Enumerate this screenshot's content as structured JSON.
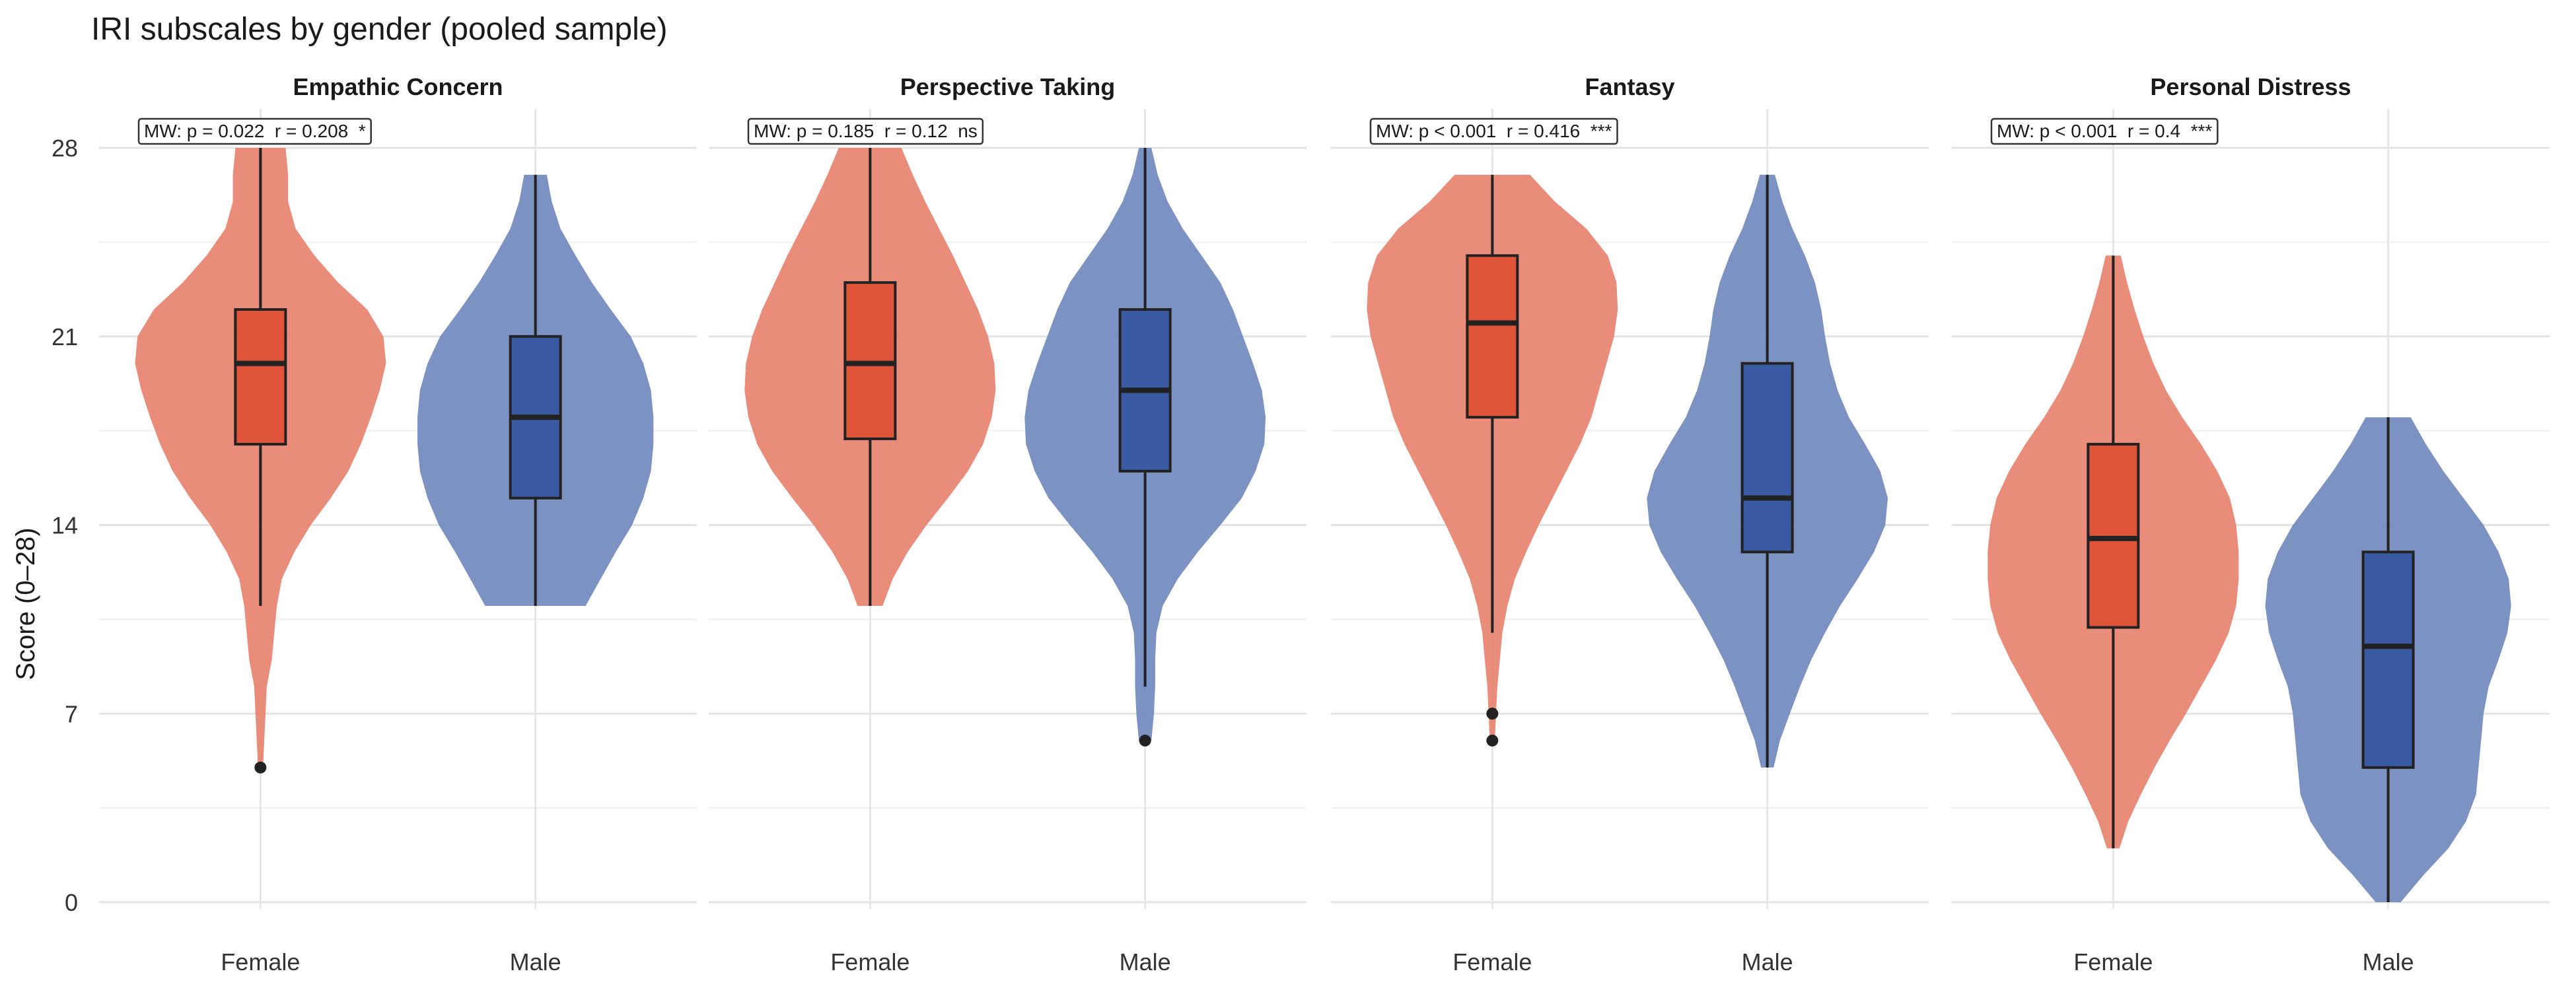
{
  "chart_data": {
    "type": "violin",
    "title": "IRI subscales by gender (pooled sample)",
    "ylabel": "Score (0–28)",
    "xlabel": "",
    "ylim": [
      0,
      28
    ],
    "yticks": [
      0,
      7,
      14,
      21,
      28
    ],
    "categories": [
      "Female",
      "Male"
    ],
    "colors": {
      "Female_violin": "#e8806c",
      "Female_box": "#e0553a",
      "Male_violin": "#6d86bd",
      "Male_box": "#3a5ba3",
      "line": "#222222",
      "grid": "#e6e6e6",
      "annot_border": "#333333"
    },
    "panels": [
      {
        "name": "Empathic Concern",
        "annotation": "MW: p = 0.022  r = 0.208  *",
        "groups": [
          {
            "label": "Female",
            "density": [
              [
                5,
                0.02
              ],
              [
                6,
                0.03
              ],
              [
                8,
                0.05
              ],
              [
                9,
                0.09
              ],
              [
                11,
                0.13
              ],
              [
                12,
                0.17
              ],
              [
                13,
                0.27
              ],
              [
                14,
                0.4
              ],
              [
                15,
                0.56
              ],
              [
                16,
                0.7
              ],
              [
                17,
                0.8
              ],
              [
                18,
                0.88
              ],
              [
                19,
                0.95
              ],
              [
                20,
                1.0
              ],
              [
                21,
                0.98
              ],
              [
                22,
                0.85
              ],
              [
                23,
                0.62
              ],
              [
                24,
                0.43
              ],
              [
                25,
                0.28
              ],
              [
                26,
                0.22
              ],
              [
                27,
                0.22
              ],
              [
                28,
                0.2
              ]
            ],
            "box": {
              "min": 11,
              "q1": 17,
              "median": 20,
              "q3": 22,
              "max": 28
            },
            "outliers": [
              5
            ]
          },
          {
            "label": "Male",
            "density": [
              [
                11,
                0.4
              ],
              [
                12,
                0.52
              ],
              [
                13,
                0.64
              ],
              [
                14,
                0.77
              ],
              [
                15,
                0.86
              ],
              [
                16,
                0.92
              ],
              [
                17,
                0.94
              ],
              [
                18,
                0.94
              ],
              [
                19,
                0.92
              ],
              [
                20,
                0.86
              ],
              [
                21,
                0.76
              ],
              [
                22,
                0.6
              ],
              [
                23,
                0.45
              ],
              [
                24,
                0.32
              ],
              [
                25,
                0.2
              ],
              [
                26,
                0.13
              ],
              [
                27,
                0.09
              ]
            ],
            "box": {
              "min": 11,
              "q1": 15,
              "median": 18,
              "q3": 21,
              "max": 27
            },
            "outliers": []
          }
        ]
      },
      {
        "name": "Perspective Taking",
        "annotation": "MW: p = 0.185  r = 0.12  ns",
        "groups": [
          {
            "label": "Female",
            "density": [
              [
                11,
                0.1
              ],
              [
                12,
                0.18
              ],
              [
                13,
                0.3
              ],
              [
                14,
                0.45
              ],
              [
                15,
                0.62
              ],
              [
                16,
                0.78
              ],
              [
                17,
                0.9
              ],
              [
                18,
                0.97
              ],
              [
                19,
                1.0
              ],
              [
                20,
                0.99
              ],
              [
                21,
                0.94
              ],
              [
                22,
                0.86
              ],
              [
                23,
                0.76
              ],
              [
                24,
                0.66
              ],
              [
                25,
                0.55
              ],
              [
                26,
                0.44
              ],
              [
                27,
                0.34
              ],
              [
                28,
                0.25
              ]
            ],
            "box": {
              "min": 11,
              "q1": 17.2,
              "median": 20,
              "q3": 23,
              "max": 28
            },
            "outliers": []
          },
          {
            "label": "Male",
            "density": [
              [
                6,
                0.05
              ],
              [
                7,
                0.07
              ],
              [
                8,
                0.08
              ],
              [
                9,
                0.08
              ],
              [
                10,
                0.09
              ],
              [
                11,
                0.14
              ],
              [
                12,
                0.26
              ],
              [
                13,
                0.42
              ],
              [
                14,
                0.6
              ],
              [
                15,
                0.77
              ],
              [
                16,
                0.88
              ],
              [
                17,
                0.95
              ],
              [
                18,
                0.96
              ],
              [
                19,
                0.93
              ],
              [
                20,
                0.86
              ],
              [
                21,
                0.78
              ],
              [
                22,
                0.7
              ],
              [
                23,
                0.6
              ],
              [
                24,
                0.45
              ],
              [
                25,
                0.3
              ],
              [
                26,
                0.18
              ],
              [
                27,
                0.1
              ],
              [
                28,
                0.05
              ]
            ],
            "box": {
              "min": 8,
              "q1": 16,
              "median": 19,
              "q3": 22,
              "max": 28
            },
            "outliers": [
              6
            ]
          }
        ]
      },
      {
        "name": "Fantasy",
        "annotation": "MW: p < 0.001  r = 0.416  ***",
        "groups": [
          {
            "label": "Female",
            "density": [
              [
                6,
                0.02
              ],
              [
                7,
                0.03
              ],
              [
                8,
                0.04
              ],
              [
                9,
                0.06
              ],
              [
                10,
                0.08
              ],
              [
                11,
                0.12
              ],
              [
                12,
                0.18
              ],
              [
                13,
                0.27
              ],
              [
                14,
                0.37
              ],
              [
                15,
                0.48
              ],
              [
                16,
                0.59
              ],
              [
                17,
                0.7
              ],
              [
                18,
                0.79
              ],
              [
                19,
                0.85
              ],
              [
                20,
                0.91
              ],
              [
                21,
                0.97
              ],
              [
                22,
                1.0
              ],
              [
                23,
                0.99
              ],
              [
                24,
                0.92
              ],
              [
                25,
                0.75
              ],
              [
                26,
                0.5
              ],
              [
                27,
                0.3
              ]
            ],
            "box": {
              "min": 10,
              "q1": 18,
              "median": 21.5,
              "q3": 24,
              "max": 27
            },
            "outliers": [
              6,
              7
            ]
          },
          {
            "label": "Male",
            "density": [
              [
                5,
                0.05
              ],
              [
                6,
                0.1
              ],
              [
                7,
                0.18
              ],
              [
                8,
                0.26
              ],
              [
                9,
                0.35
              ],
              [
                10,
                0.46
              ],
              [
                11,
                0.58
              ],
              [
                12,
                0.72
              ],
              [
                13,
                0.85
              ],
              [
                14,
                0.94
              ],
              [
                15,
                0.96
              ],
              [
                16,
                0.9
              ],
              [
                17,
                0.78
              ],
              [
                18,
                0.65
              ],
              [
                19,
                0.56
              ],
              [
                20,
                0.5
              ],
              [
                21,
                0.46
              ],
              [
                22,
                0.43
              ],
              [
                23,
                0.38
              ],
              [
                24,
                0.3
              ],
              [
                25,
                0.2
              ],
              [
                26,
                0.12
              ],
              [
                27,
                0.06
              ]
            ],
            "box": {
              "min": 5,
              "q1": 13,
              "median": 15,
              "q3": 20,
              "max": 27
            },
            "outliers": []
          }
        ]
      },
      {
        "name": "Personal Distress",
        "annotation": "MW: p < 0.001  r = 0.4  ***",
        "groups": [
          {
            "label": "Female",
            "density": [
              [
                2,
                0.05
              ],
              [
                3,
                0.12
              ],
              [
                4,
                0.22
              ],
              [
                5,
                0.33
              ],
              [
                6,
                0.45
              ],
              [
                7,
                0.58
              ],
              [
                8,
                0.7
              ],
              [
                9,
                0.82
              ],
              [
                10,
                0.92
              ],
              [
                11,
                0.98
              ],
              [
                12,
                1.0
              ],
              [
                13,
                1.0
              ],
              [
                14,
                0.98
              ],
              [
                15,
                0.93
              ],
              [
                16,
                0.83
              ],
              [
                17,
                0.7
              ],
              [
                18,
                0.55
              ],
              [
                19,
                0.42
              ],
              [
                20,
                0.32
              ],
              [
                21,
                0.24
              ],
              [
                22,
                0.17
              ],
              [
                23,
                0.11
              ],
              [
                24,
                0.06
              ]
            ],
            "box": {
              "min": 2,
              "q1": 10.2,
              "median": 13.5,
              "q3": 17,
              "max": 24
            },
            "outliers": []
          },
          {
            "label": "Male",
            "density": [
              [
                0,
                0.1
              ],
              [
                1,
                0.28
              ],
              [
                2,
                0.48
              ],
              [
                3,
                0.62
              ],
              [
                4,
                0.7
              ],
              [
                5,
                0.72
              ],
              [
                6,
                0.74
              ],
              [
                7,
                0.76
              ],
              [
                8,
                0.8
              ],
              [
                9,
                0.88
              ],
              [
                10,
                0.95
              ],
              [
                11,
                0.98
              ],
              [
                12,
                0.96
              ],
              [
                13,
                0.88
              ],
              [
                14,
                0.76
              ],
              [
                15,
                0.6
              ],
              [
                16,
                0.44
              ],
              [
                17,
                0.3
              ],
              [
                18,
                0.18
              ]
            ],
            "box": {
              "min": 0,
              "q1": 5,
              "median": 9.5,
              "q3": 13,
              "max": 18
            },
            "outliers": []
          }
        ]
      }
    ]
  }
}
